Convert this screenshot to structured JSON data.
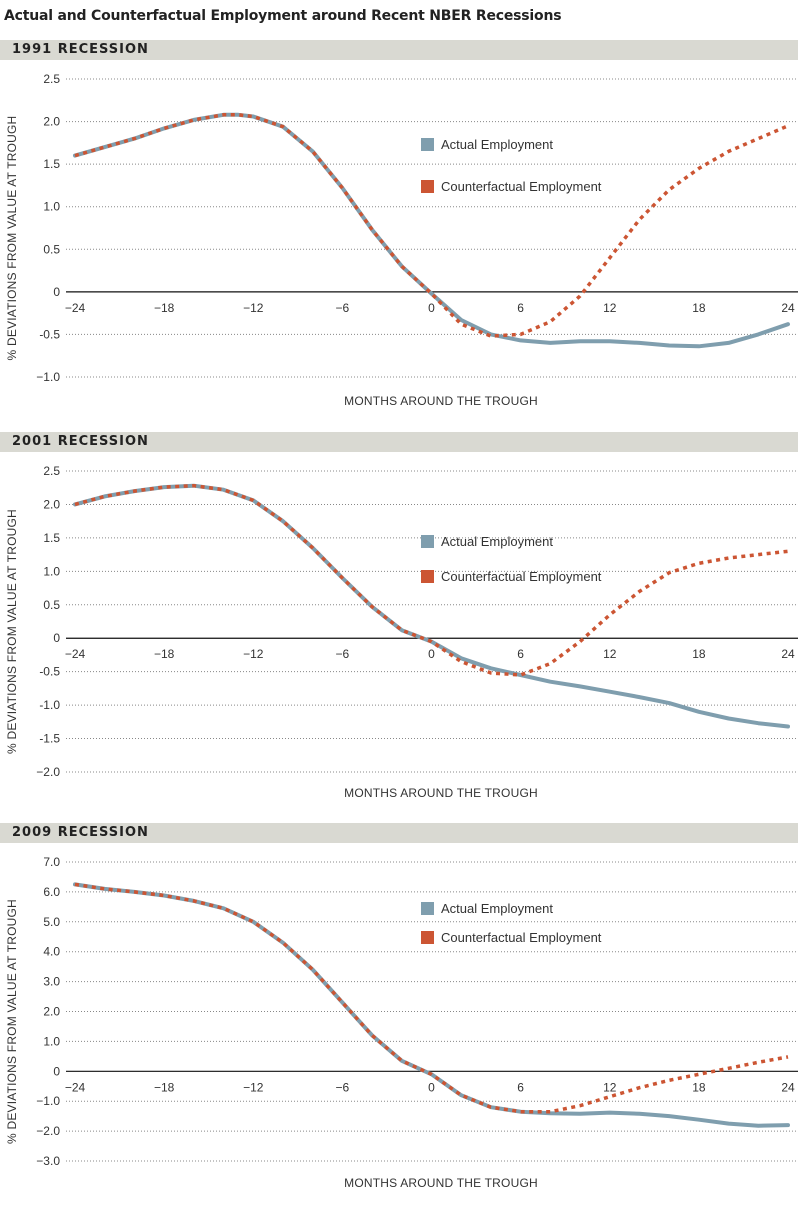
{
  "title": "Actual and Counterfactual Employment around Recent NBER Recessions",
  "colors": {
    "actual": "#7f9eae",
    "counterfactual": "#cc5533",
    "header_bg": "#d9d9d2"
  },
  "legend": {
    "actual": "Actual Employment",
    "counterfactual": "Counterfactual Employment",
    "position": "upper-right"
  },
  "chart_data": [
    {
      "type": "line",
      "title": "1991 RECESSION",
      "xlabel": "MONTHS AROUND THE TROUGH",
      "ylabel": "% DEVIATIONS FROM VALUE AT TROUGH",
      "xlim": [
        -24,
        24
      ],
      "ylim": [
        -1.0,
        2.5
      ],
      "yticks": [
        -1.0,
        -0.5,
        0,
        0.5,
        1.0,
        1.5,
        2.0,
        2.5
      ],
      "ytick_labels": [
        "−1.0",
        "-0.5",
        "0",
        "0.5",
        "1.0",
        "1.5",
        "2.0",
        "2.5"
      ],
      "xticks": [
        -24,
        -18,
        -12,
        -6,
        0,
        6,
        12,
        18,
        24
      ],
      "xtick_labels": [
        "−24",
        "−18",
        "−12",
        "−6",
        "0",
        "6",
        "12",
        "18",
        "24"
      ],
      "grid": "horizontal-dotted",
      "series": [
        {
          "name": "Actual Employment",
          "style": "solid",
          "x": [
            -24,
            -22,
            -20,
            -18,
            -16,
            -14,
            -13,
            -12,
            -10,
            -8,
            -6,
            -4,
            -2,
            0,
            2,
            4,
            6,
            8,
            10,
            12,
            14,
            16,
            18,
            20,
            22,
            24
          ],
          "y": [
            1.6,
            1.7,
            1.8,
            1.92,
            2.02,
            2.08,
            2.08,
            2.06,
            1.94,
            1.65,
            1.22,
            0.73,
            0.3,
            -0.02,
            -0.33,
            -0.5,
            -0.57,
            -0.6,
            -0.58,
            -0.58,
            -0.6,
            -0.63,
            -0.64,
            -0.6,
            -0.5,
            -0.38
          ]
        },
        {
          "name": "Counterfactual Employment",
          "style": "dotted",
          "x": [
            -24,
            -22,
            -20,
            -18,
            -16,
            -14,
            -13,
            -12,
            -10,
            -8,
            -6,
            -4,
            -2,
            0,
            2,
            4,
            6,
            8,
            10,
            12,
            14,
            16,
            18,
            20,
            22,
            24
          ],
          "y": [
            1.6,
            1.7,
            1.8,
            1.92,
            2.02,
            2.08,
            2.08,
            2.06,
            1.94,
            1.65,
            1.22,
            0.73,
            0.3,
            -0.02,
            -0.38,
            -0.52,
            -0.5,
            -0.35,
            -0.05,
            0.4,
            0.85,
            1.2,
            1.45,
            1.65,
            1.8,
            1.95
          ]
        }
      ]
    },
    {
      "type": "line",
      "title": "2001 RECESSION",
      "xlabel": "MONTHS AROUND THE TROUGH",
      "ylabel": "% DEVIATIONS FROM VALUE AT TROUGH",
      "xlim": [
        -24,
        24
      ],
      "ylim": [
        -2.0,
        2.5
      ],
      "yticks": [
        -2.0,
        -1.5,
        -1.0,
        -0.5,
        0,
        0.5,
        1.0,
        1.5,
        2.0,
        2.5
      ],
      "ytick_labels": [
        "−2.0",
        "-1.5",
        "-1.0",
        "-0.5",
        "0",
        "0.5",
        "1.0",
        "1.5",
        "2.0",
        "2.5"
      ],
      "xticks": [
        -24,
        -18,
        -12,
        -6,
        0,
        6,
        12,
        18,
        24
      ],
      "xtick_labels": [
        "−24",
        "−18",
        "−12",
        "−6",
        "0",
        "6",
        "12",
        "18",
        "24"
      ],
      "grid": "horizontal-dotted",
      "series": [
        {
          "name": "Actual Employment",
          "style": "solid",
          "x": [
            -24,
            -22,
            -20,
            -18,
            -16,
            -14,
            -12,
            -10,
            -8,
            -6,
            -4,
            -2,
            0,
            2,
            4,
            6,
            8,
            10,
            12,
            14,
            16,
            18,
            20,
            22,
            24
          ],
          "y": [
            2.0,
            2.12,
            2.2,
            2.26,
            2.28,
            2.22,
            2.06,
            1.75,
            1.35,
            0.9,
            0.47,
            0.12,
            -0.05,
            -0.3,
            -0.45,
            -0.55,
            -0.65,
            -0.72,
            -0.8,
            -0.88,
            -0.97,
            -1.1,
            -1.2,
            -1.27,
            -1.32
          ]
        },
        {
          "name": "Counterfactual Employment",
          "style": "dotted",
          "x": [
            -24,
            -22,
            -20,
            -18,
            -16,
            -14,
            -12,
            -10,
            -8,
            -6,
            -4,
            -2,
            0,
            2,
            4,
            6,
            8,
            10,
            12,
            14,
            16,
            18,
            20,
            22,
            24
          ],
          "y": [
            2.0,
            2.12,
            2.2,
            2.26,
            2.28,
            2.22,
            2.06,
            1.75,
            1.35,
            0.9,
            0.47,
            0.12,
            -0.05,
            -0.35,
            -0.52,
            -0.55,
            -0.38,
            -0.05,
            0.35,
            0.7,
            0.98,
            1.12,
            1.2,
            1.25,
            1.3
          ]
        }
      ]
    },
    {
      "type": "line",
      "title": "2009 RECESSION",
      "xlabel": "MONTHS AROUND THE TROUGH",
      "ylabel": "% DEVIATIONS FROM VALUE AT TROUGH",
      "xlim": [
        -24,
        24
      ],
      "ylim": [
        -3.0,
        7.0
      ],
      "yticks": [
        -3.0,
        -2.0,
        -1.0,
        0,
        1.0,
        2.0,
        3.0,
        4.0,
        5.0,
        6.0,
        7.0
      ],
      "ytick_labels": [
        "−3.0",
        "−2.0",
        "−1.0",
        "0",
        "1.0",
        "2.0",
        "3.0",
        "4.0",
        "5.0",
        "6.0",
        "7.0"
      ],
      "xticks": [
        -24,
        -18,
        -12,
        -6,
        0,
        6,
        12,
        18,
        24
      ],
      "xtick_labels": [
        "−24",
        "−18",
        "−12",
        "−6",
        "0",
        "6",
        "12",
        "18",
        "24"
      ],
      "grid": "horizontal-dotted",
      "series": [
        {
          "name": "Actual Employment",
          "style": "solid",
          "x": [
            -24,
            -22,
            -20,
            -18,
            -16,
            -14,
            -12,
            -10,
            -8,
            -6,
            -4,
            -2,
            0,
            2,
            4,
            6,
            8,
            10,
            12,
            14,
            16,
            18,
            20,
            22,
            24
          ],
          "y": [
            6.25,
            6.1,
            6.0,
            5.88,
            5.7,
            5.45,
            5.0,
            4.3,
            3.4,
            2.3,
            1.2,
            0.35,
            -0.1,
            -0.8,
            -1.2,
            -1.35,
            -1.4,
            -1.42,
            -1.38,
            -1.42,
            -1.5,
            -1.62,
            -1.75,
            -1.82,
            -1.8
          ]
        },
        {
          "name": "Counterfactual Employment",
          "style": "dotted",
          "x": [
            -24,
            -22,
            -20,
            -18,
            -16,
            -14,
            -12,
            -10,
            -8,
            -6,
            -4,
            -2,
            0,
            2,
            4,
            6,
            8,
            10,
            12,
            14,
            16,
            18,
            20,
            22,
            24
          ],
          "y": [
            6.25,
            6.1,
            6.0,
            5.88,
            5.7,
            5.45,
            5.0,
            4.3,
            3.4,
            2.3,
            1.2,
            0.35,
            -0.1,
            -0.8,
            -1.2,
            -1.35,
            -1.35,
            -1.15,
            -0.85,
            -0.55,
            -0.3,
            -0.1,
            0.1,
            0.3,
            0.48
          ]
        }
      ]
    }
  ]
}
